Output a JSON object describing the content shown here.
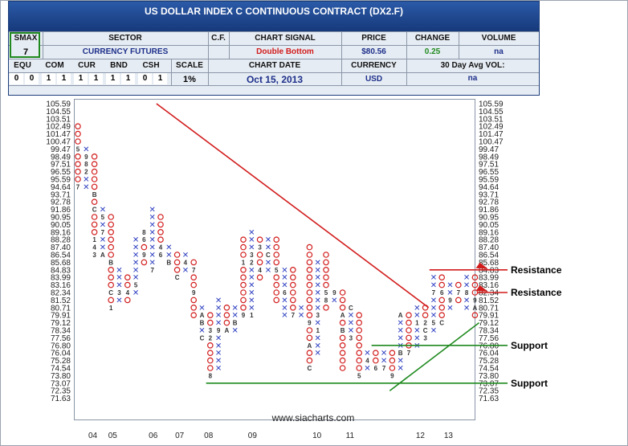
{
  "header": {
    "title": "US DOLLAR INDEX C CONTINUOUS CONTRACT (DX2.F)",
    "labels": {
      "smax": "SMAX",
      "sector": "SECTOR",
      "cf": "C.F.",
      "chart_signal": "CHART SIGNAL",
      "price": "PRICE",
      "change": "CHANGE",
      "volume": "VOLUME",
      "equ": "EQU",
      "com": "COM",
      "cur": "CUR",
      "bnd": "BND",
      "csh": "CSH",
      "scale": "SCALE",
      "chart_date": "CHART DATE",
      "currency": "CURRENCY",
      "avg_vol": "30 Day Avg VOL:"
    },
    "values": {
      "smax": "7",
      "sector": "CURRENCY FUTURES",
      "cf": "",
      "chart_signal": "Double Bottom",
      "price": "$80.56",
      "change": "0.25",
      "volume": "na",
      "scale": "1%",
      "chart_date": "Oct 15, 2013",
      "currency": "USD",
      "avg_vol": "na"
    },
    "asset_classes": [
      {
        "label": "EQU",
        "cells": [
          "0",
          "0"
        ],
        "colors": [
          "#d21c1c",
          "#d21c1c"
        ]
      },
      {
        "label": "COM",
        "cells": [
          "1",
          "1"
        ],
        "colors": [
          "#1f8a1f",
          "#1f8a1f"
        ]
      },
      {
        "label": "CUR",
        "cells": [
          "1",
          "1"
        ],
        "colors": [
          "#1f8a1f",
          "#1f8a1f"
        ]
      },
      {
        "label": "BND",
        "cells": [
          "1",
          "1"
        ],
        "colors": [
          "#1f8a1f",
          "#1f8a1f"
        ]
      },
      {
        "label": "CSH",
        "cells": [
          "0",
          "1"
        ],
        "colors": [
          "#d21c1c",
          "#1f8a1f"
        ]
      }
    ],
    "colors": {
      "signal": "#d21c1c",
      "change": "#1f8a1f",
      "title_bg": "#1d3d7a",
      "smax_border": "#1f8a1f"
    }
  },
  "footer": {
    "url": "www.siacharts.com"
  },
  "chart_data": {
    "type": "point-and-figure",
    "box_scale": "1%",
    "y_ticks": [
      105.59,
      104.55,
      103.51,
      102.49,
      101.47,
      100.47,
      99.47,
      98.49,
      97.51,
      96.55,
      95.59,
      94.64,
      93.71,
      92.78,
      91.86,
      90.95,
      90.05,
      89.16,
      88.28,
      87.4,
      86.54,
      85.68,
      84.83,
      83.99,
      83.16,
      82.34,
      81.52,
      80.71,
      79.91,
      79.12,
      78.34,
      77.56,
      76.8,
      76.04,
      75.28,
      74.54,
      73.8,
      73.07,
      72.35,
      71.63
    ],
    "x_labels": [
      {
        "label": "04",
        "col": 1.8
      },
      {
        "label": "05",
        "col": 4.2
      },
      {
        "label": "06",
        "col": 9.1
      },
      {
        "label": "07",
        "col": 12.3
      },
      {
        "label": "08",
        "col": 15.8
      },
      {
        "label": "09",
        "col": 21.1
      },
      {
        "label": "10",
        "col": 28.9
      },
      {
        "label": "11",
        "col": 32.9
      },
      {
        "label": "12",
        "col": 41.4
      },
      {
        "label": "13",
        "col": 44.8
      }
    ],
    "columns": [
      {
        "col": 0,
        "type": "O",
        "high": 102.49,
        "low": 94.64,
        "markers": {
          "99.47": "5",
          "94.64": "7"
        }
      },
      {
        "col": 1,
        "type": "X",
        "high": 99.47,
        "low": 94.64,
        "markers": {
          "98.49": "9",
          "97.51": "8",
          "96.55": "2"
        }
      },
      {
        "col": 2,
        "type": "O",
        "high": 98.49,
        "low": 86.54,
        "markers": {
          "93.71": "B",
          "91.86": "C",
          "88.28": "1",
          "87.40": "4",
          "86.54": "3"
        }
      },
      {
        "col": 3,
        "type": "X",
        "high": 91.86,
        "low": 86.54,
        "markers": {
          "90.95": "5",
          "89.16": "7",
          "86.54": "A"
        }
      },
      {
        "col": 4,
        "type": "O",
        "high": 90.95,
        "low": 80.71,
        "markers": {
          "85.68": "B",
          "82.34": "C",
          "80.71": "1"
        }
      },
      {
        "col": 5,
        "type": "X",
        "high": 84.83,
        "low": 81.52,
        "markers": {
          "82.34": "3"
        }
      },
      {
        "col": 6,
        "type": "O",
        "high": 83.99,
        "low": 81.52,
        "markers": {
          "82.34": "4"
        }
      },
      {
        "col": 7,
        "type": "X",
        "high": 88.28,
        "low": 82.34,
        "markers": {
          "83.16": "5"
        }
      },
      {
        "col": 8,
        "type": "O",
        "high": 89.16,
        "low": 85.68,
        "markers": {
          "89.16": "8",
          "88.28": "6",
          "86.54": "9"
        }
      },
      {
        "col": 9,
        "type": "X",
        "high": 91.86,
        "low": 84.83,
        "markers": {
          "84.83": "7"
        }
      },
      {
        "col": 10,
        "type": "O",
        "high": 90.95,
        "low": 86.54,
        "markers": {
          "87.40": "4",
          "86.54": "6"
        }
      },
      {
        "col": 11,
        "type": "X",
        "high": 87.4,
        "low": 85.68,
        "markers": {
          "85.68": "B"
        }
      },
      {
        "col": 12,
        "type": "O",
        "high": 86.54,
        "low": 83.99,
        "markers": {
          "83.99": "C"
        }
      },
      {
        "col": 13,
        "type": "X",
        "high": 86.54,
        "low": 84.83,
        "markers": {
          "85.68": "4"
        }
      },
      {
        "col": 14,
        "type": "O",
        "high": 85.68,
        "low": 79.91,
        "markers": {
          "84.83": "7",
          "82.34": "9"
        }
      },
      {
        "col": 15,
        "type": "X",
        "high": 80.71,
        "low": 77.56,
        "markers": {
          "79.91": "A",
          "79.12": "B",
          "77.56": "C"
        }
      },
      {
        "col": 16,
        "type": "O",
        "high": 79.91,
        "low": 73.8,
        "markers": {
          "78.34": "3",
          "77.56": "2",
          "73.80": "8"
        }
      },
      {
        "col": 17,
        "type": "X",
        "high": 81.52,
        "low": 74.54,
        "markers": {
          "78.34": "9"
        }
      },
      {
        "col": 18,
        "type": "O",
        "high": 80.71,
        "low": 78.34,
        "markers": {
          "78.34": "A"
        }
      },
      {
        "col": 19,
        "type": "X",
        "high": 80.71,
        "low": 78.34,
        "markers": {
          "79.12": "B"
        }
      },
      {
        "col": 20,
        "type": "O",
        "high": 88.28,
        "low": 79.91,
        "markers": {
          "85.68": "1",
          "79.91": "9"
        }
      },
      {
        "col": 21,
        "type": "X",
        "high": 89.16,
        "low": 79.91,
        "markers": {
          "86.54": "3",
          "85.68": "2",
          "79.91": "1"
        }
      },
      {
        "col": 22,
        "type": "O",
        "high": 88.28,
        "low": 83.99,
        "markers": {
          "87.40": "3",
          "84.83": "4"
        }
      },
      {
        "col": 23,
        "type": "X",
        "high": 88.28,
        "low": 84.83,
        "markers": {
          "86.54": "C"
        }
      },
      {
        "col": 24,
        "type": "O",
        "high": 88.28,
        "low": 81.52,
        "markers": {
          "84.83": "5"
        }
      },
      {
        "col": 25,
        "type": "X",
        "high": 84.83,
        "low": 79.91,
        "markers": {
          "82.34": "6"
        }
      },
      {
        "col": 26,
        "type": "O",
        "high": 84.83,
        "low": 79.91,
        "markers": {
          "79.91": "7"
        }
      },
      {
        "col": 27,
        "type": "X",
        "high": 80.71,
        "low": 79.91,
        "markers": {}
      },
      {
        "col": 28,
        "type": "O",
        "high": 87.4,
        "low": 74.54,
        "markers": {
          "79.12": "9",
          "76.80": "A",
          "74.54": "C"
        }
      },
      {
        "col": 29,
        "type": "X",
        "high": 85.68,
        "low": 76.04,
        "markers": {
          "86.54": "6",
          "79.91": "3",
          "78.34": "1"
        }
      },
      {
        "col": 30,
        "type": "O",
        "high": 86.54,
        "low": 80.71,
        "markers": {
          "82.34": "5",
          "81.52": "8"
        }
      },
      {
        "col": 31,
        "type": "X",
        "high": 82.34,
        "low": 81.52,
        "markers": {
          "82.34": "9"
        }
      },
      {
        "col": 32,
        "type": "O",
        "high": 82.34,
        "low": 74.54,
        "markers": {
          "79.91": "A",
          "78.34": "B"
        }
      },
      {
        "col": 33,
        "type": "X",
        "high": 80.71,
        "low": 77.56,
        "markers": {
          "80.71": "C",
          "77.56": "3"
        }
      },
      {
        "col": 34,
        "type": "O",
        "high": 79.91,
        "low": 73.8,
        "markers": {
          "73.80": "5"
        }
      },
      {
        "col": 35,
        "type": "X",
        "high": 76.04,
        "low": 74.54,
        "markers": {
          "75.28": "4"
        }
      },
      {
        "col": 36,
        "type": "O",
        "high": 76.04,
        "low": 74.54,
        "markers": {
          "74.54": "6"
        }
      },
      {
        "col": 37,
        "type": "X",
        "high": 76.04,
        "low": 74.54,
        "markers": {
          "74.54": "7"
        }
      },
      {
        "col": 38,
        "type": "O",
        "high": 76.04,
        "low": 73.8,
        "markers": {
          "73.80": "9"
        }
      },
      {
        "col": 39,
        "type": "X",
        "high": 79.91,
        "low": 74.54,
        "markers": {
          "79.91": "A",
          "76.04": "B"
        }
      },
      {
        "col": 40,
        "type": "O",
        "high": 79.91,
        "low": 76.04,
        "markers": {
          "76.04": "7"
        }
      },
      {
        "col": 41,
        "type": "X",
        "high": 80.71,
        "low": 76.8,
        "markers": {
          "79.12": "1"
        }
      },
      {
        "col": 42,
        "type": "O",
        "high": 80.71,
        "low": 77.56,
        "markers": {
          "79.12": "2",
          "78.34": "C",
          "77.56": "3"
        }
      },
      {
        "col": 43,
        "type": "X",
        "high": 83.99,
        "low": 78.34,
        "markers": {
          "82.34": "7",
          "79.12": "5"
        }
      },
      {
        "col": 44,
        "type": "O",
        "high": 83.99,
        "low": 79.12,
        "markers": {
          "82.34": "6",
          "79.12": "C"
        }
      },
      {
        "col": 45,
        "type": "X",
        "high": 83.16,
        "low": 80.71,
        "markers": {
          "81.52": "9"
        }
      },
      {
        "col": 46,
        "type": "O",
        "high": 83.16,
        "low": 81.52,
        "markers": {
          "82.34": "7"
        }
      },
      {
        "col": 47,
        "type": "X",
        "high": 83.99,
        "low": 80.71,
        "markers": {
          "82.34": "8"
        }
      },
      {
        "col": 48,
        "type": "O",
        "high": 83.99,
        "low": 79.91,
        "markers": {
          "81.52": "9",
          "80.71": "A"
        }
      }
    ],
    "trend_lines": [
      {
        "kind": "resistance-trend",
        "color": "#d21c1c",
        "from": {
          "col": 9.5,
          "y": 105.59
        },
        "to": {
          "col": 42.4,
          "y": 80.71
        }
      },
      {
        "kind": "support-trend",
        "color": "#1f8a1f",
        "from": {
          "col": 37.7,
          "y": 72.35
        },
        "to": {
          "col": 48.5,
          "y": 79.12
        }
      }
    ],
    "levels": [
      {
        "label": "Resistance",
        "y": 84.83,
        "color": "#d21c1c",
        "from_col": 42.5,
        "to_col": 48.3
      },
      {
        "label": "Resistance",
        "y": 82.34,
        "color": "#d21c1c",
        "from_col": 48.3,
        "to_col": 49.3
      },
      {
        "label": "Support",
        "y": 76.8,
        "color": "#1f8a1f",
        "from_col": 35.5,
        "to_col": 49.5
      },
      {
        "label": "Support",
        "y": 73.07,
        "color": "#1f8a1f",
        "from_col": 15.5,
        "to_col": 49.5
      }
    ],
    "signal_arrows": [
      {
        "y": 84.83,
        "color": "#d21c1c"
      },
      {
        "y": 82.34,
        "color": "#d21c1c"
      }
    ]
  }
}
